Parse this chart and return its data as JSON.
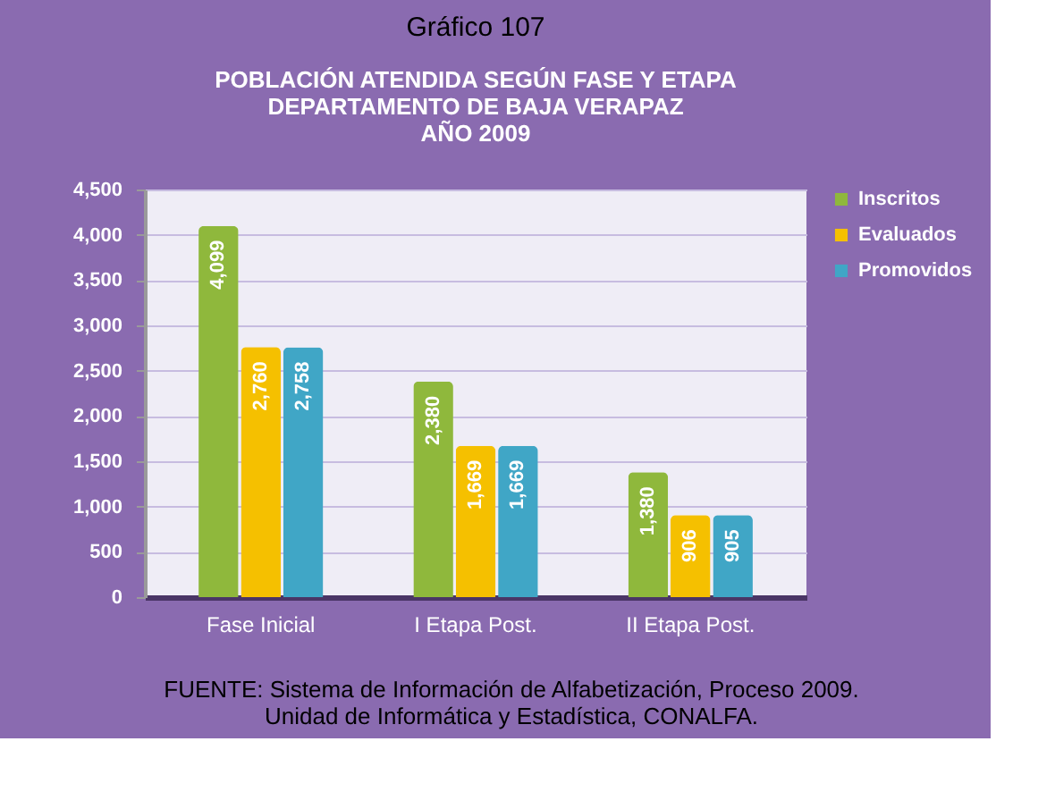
{
  "chart_data": {
    "type": "bar",
    "title": "Gráfico 107",
    "subtitle": "POBLACIÓN ATENDIDA SEGÚN FASE Y ETAPA\nDEPARTAMENTO DE BAJA VERAPAZ\nAÑO 2009",
    "categories": [
      "Fase Inicial",
      "I Etapa Post.",
      "II Etapa Post."
    ],
    "series": [
      {
        "name": "Inscritos",
        "color": "#8fb83c",
        "values": [
          4099,
          2380,
          1380
        ],
        "value_labels": [
          "4,099",
          "2,380",
          "1,380"
        ]
      },
      {
        "name": "Evaluados",
        "color": "#f5c000",
        "values": [
          2760,
          1669,
          906
        ],
        "value_labels": [
          "2,760",
          "1,669",
          "906"
        ]
      },
      {
        "name": "Promovidos",
        "color": "#40a6c6",
        "values": [
          2758,
          1669,
          905
        ],
        "value_labels": [
          "2,758",
          "1,669",
          "905"
        ]
      }
    ],
    "ylim": [
      0,
      4500
    ],
    "yticks": [
      0,
      500,
      {
        "value": 1000,
        "label": "1,000"
      },
      {
        "value": 1500,
        "label": "1,500"
      },
      {
        "value": 2000,
        "label": "2,000"
      },
      {
        "value": 2500,
        "label": "2,500"
      },
      {
        "value": 3000,
        "label": "3,000"
      },
      {
        "value": 3500,
        "label": "3,500"
      },
      {
        "value": 4000,
        "label": "4,000"
      },
      {
        "value": 4500,
        "label": "4,500"
      }
    ],
    "grid": "y",
    "legend": "right",
    "annotations": [
      "FUENTE: Sistema de Información de Alfabetización, Proceso 2009.",
      "Unidad de Informática y Estadística, CONALFA."
    ]
  }
}
